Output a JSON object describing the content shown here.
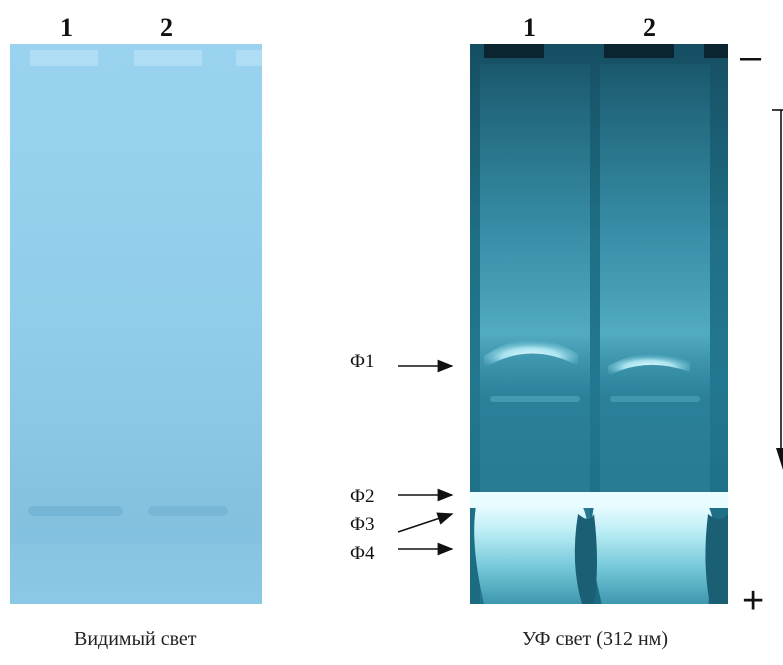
{
  "visible_gel": {
    "lanes": [
      "1",
      "2"
    ],
    "caption": "Видимый свет"
  },
  "uv_gel": {
    "lanes": [
      "1",
      "2"
    ],
    "caption": "УФ  свет (312 нм)",
    "bands": [
      {
        "id": "f1",
        "label": "Ф1"
      },
      {
        "id": "f2",
        "label": "Ф2"
      },
      {
        "id": "f3",
        "label": "Ф3"
      },
      {
        "id": "f4",
        "label": "Ф4"
      }
    ],
    "cathode_sign": "–",
    "anode_sign": "+"
  },
  "colors": {
    "visible_gel": "#8ecbe9",
    "uv_gel": "#1e6e86",
    "uv_glow": "#cdf3f7"
  }
}
